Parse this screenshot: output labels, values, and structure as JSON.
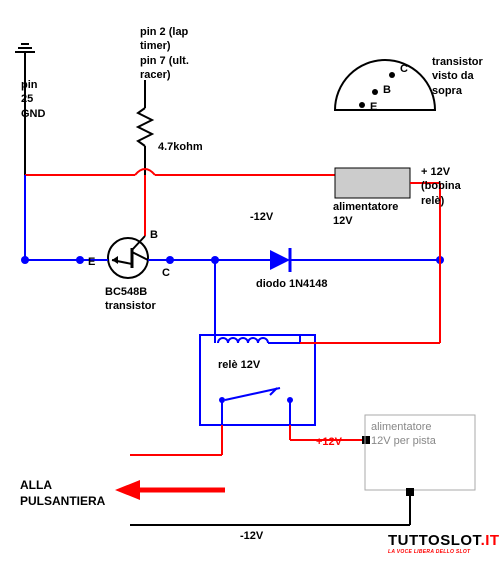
{
  "labels": {
    "pin2": "pin 2 (lap\ntimer)\npin 7 (ult.\nracer)",
    "pin25": "pin\n25\nGND",
    "resistor": "4.7kohm",
    "transistor_view": "transistor\nvisto da\nsopra",
    "tv_c": "C",
    "tv_b": "B",
    "tv_e": "E",
    "plus12v": "+ 12V\n(bobina\nrelè)",
    "alimentatore": "alimentatore\n12V",
    "minus12v_1": "-12V",
    "minus12v_2": "-12V",
    "t_b": "B",
    "t_e": "E",
    "t_c": "C",
    "bc548b": "BC548B\ntransistor",
    "diodo": "diodo 1N4148",
    "rele": "relè 12V",
    "plus12v_red": "+12V",
    "alim_pista": "alimentatore\n12V per pista",
    "pulsantiera": "ALLA\nPULSANTIERA",
    "logo_main": "TUTTOSLOT.IT",
    "logo_sub": "LA VOCE LIBERA DELLO SLOT"
  },
  "colors": {
    "red": "#ff0000",
    "blue": "#0000ff",
    "black": "#000000",
    "gray_fill": "#cccccc",
    "white": "#ffffff"
  }
}
